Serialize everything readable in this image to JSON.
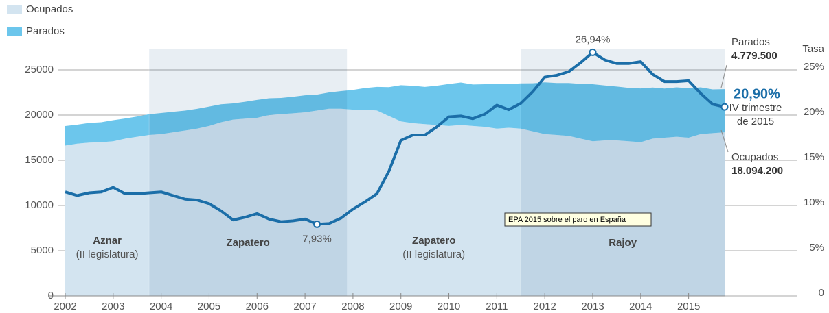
{
  "chart_data": {
    "type": "area",
    "x": [
      2002,
      2002.25,
      2002.5,
      2002.75,
      2003,
      2003.25,
      2003.5,
      2003.75,
      2004,
      2004.25,
      2004.5,
      2004.75,
      2005,
      2005.25,
      2005.5,
      2005.75,
      2006,
      2006.25,
      2006.5,
      2006.75,
      2007,
      2007.25,
      2007.5,
      2007.75,
      2008,
      2008.25,
      2008.5,
      2008.75,
      2009,
      2009.25,
      2009.5,
      2009.75,
      2010,
      2010.25,
      2010.5,
      2010.75,
      2011,
      2011.25,
      2011.5,
      2011.75,
      2012,
      2012.25,
      2012.5,
      2012.75,
      2013,
      2013.25,
      2013.5,
      2013.75,
      2014,
      2014.25,
      2014.5,
      2014.75,
      2015,
      2015.25,
      2015.5,
      2015.75
    ],
    "xlim": [
      2002,
      2015.75
    ],
    "xticks": [
      2002,
      2003,
      2004,
      2005,
      2006,
      2007,
      2008,
      2009,
      2010,
      2011,
      2012,
      2013,
      2014,
      2015
    ],
    "ylim": [
      0,
      25000
    ],
    "yticks": [
      0,
      5000,
      10000,
      15000,
      20000,
      25000
    ],
    "y2lim": [
      0,
      25
    ],
    "y2ticks": [
      0,
      {
        "value": 5,
        "label": "5%"
      },
      {
        "value": 10,
        "label": "10%"
      },
      {
        "value": 15,
        "label": "15%"
      },
      {
        "value": 20,
        "label": "20%"
      },
      {
        "value": 25,
        "label": "25%"
      }
    ],
    "y2label": "Tasa",
    "grid": true,
    "legend": "top-left",
    "series": [
      {
        "name": "Ocupados",
        "color": "#d3e4f0",
        "values": [
          16630,
          16840,
          16950,
          17000,
          17100,
          17400,
          17600,
          17800,
          17900,
          18100,
          18300,
          18500,
          18800,
          19200,
          19500,
          19600,
          19700,
          20000,
          20100,
          20200,
          20300,
          20500,
          20700,
          20700,
          20600,
          20600,
          20500,
          19900,
          19300,
          19100,
          19000,
          18900,
          18800,
          18900,
          18800,
          18700,
          18500,
          18600,
          18500,
          18200,
          17900,
          17800,
          17700,
          17400,
          17100,
          17200,
          17200,
          17100,
          17000,
          17400,
          17500,
          17600,
          17500,
          17900,
          18000,
          18094.2
        ],
        "value_labels": [
          null,
          null,
          null,
          null,
          null,
          null,
          null,
          null,
          null,
          null,
          null,
          null,
          null,
          null,
          null,
          null,
          null,
          null,
          null,
          null,
          null,
          null,
          null,
          null,
          null,
          null,
          null,
          null,
          null,
          null,
          null,
          null,
          null,
          null,
          null,
          null,
          null,
          null,
          null,
          null,
          null,
          null,
          null,
          null,
          null,
          null,
          null,
          null,
          null,
          null,
          null,
          null,
          null,
          null,
          null,
          "18.094.200"
        ]
      },
      {
        "name": "Parados",
        "color": "#6cc6ec",
        "values": [
          2162,
          2103,
          2181,
          2209,
          2332,
          2217,
          2242,
          2291,
          2326,
          2260,
          2193,
          2194,
          2135,
          1992,
          1788,
          1868,
          1972,
          1858,
          1795,
          1828,
          1886,
          1765,
          1800,
          1948,
          2188,
          2391,
          2612,
          3186,
          4009,
          4136,
          4114,
          4347,
          4642,
          4695,
          4583,
          4705,
          4947,
          4825,
          5006,
          5314,
          5715,
          5746,
          5837,
          6050,
          6305,
          6075,
          5949,
          5915,
          5942,
          5646,
          5436,
          5467,
          5465,
          5168,
          4843,
          4779.5
        ],
        "value_labels": [
          null,
          null,
          null,
          null,
          null,
          null,
          null,
          null,
          null,
          null,
          null,
          null,
          null,
          null,
          null,
          null,
          null,
          null,
          null,
          null,
          null,
          null,
          null,
          null,
          null,
          null,
          null,
          null,
          null,
          null,
          null,
          null,
          null,
          null,
          null,
          null,
          null,
          null,
          null,
          null,
          null,
          null,
          null,
          null,
          null,
          null,
          null,
          null,
          null,
          null,
          null,
          null,
          null,
          null,
          null,
          "4.779.500"
        ]
      },
      {
        "type": "line",
        "axis": "y2",
        "color": "#1b6ea8",
        "values": [
          11.5,
          11.1,
          11.4,
          11.5,
          12.0,
          11.3,
          11.3,
          11.4,
          11.5,
          11.1,
          10.7,
          10.6,
          10.2,
          9.4,
          8.4,
          8.7,
          9.1,
          8.5,
          8.2,
          8.3,
          8.5,
          7.93,
          8.0,
          8.6,
          9.6,
          10.4,
          11.3,
          13.8,
          17.2,
          17.8,
          17.8,
          18.7,
          19.8,
          19.9,
          19.6,
          20.1,
          21.1,
          20.6,
          21.3,
          22.6,
          24.2,
          24.4,
          24.8,
          25.8,
          26.94,
          26.1,
          25.7,
          25.7,
          25.9,
          24.5,
          23.7,
          23.7,
          23.8,
          22.4,
          21.2,
          20.9
        ],
        "value_labels": [
          null,
          null,
          null,
          null,
          null,
          null,
          null,
          null,
          null,
          null,
          null,
          null,
          null,
          null,
          null,
          null,
          null,
          null,
          null,
          null,
          null,
          "7,93%",
          null,
          null,
          null,
          null,
          null,
          null,
          null,
          null,
          null,
          null,
          null,
          null,
          null,
          null,
          null,
          null,
          null,
          null,
          null,
          null,
          null,
          null,
          "26,94%",
          null,
          null,
          null,
          null,
          null,
          null,
          null,
          null,
          null,
          null,
          "20,90%"
        ]
      }
    ],
    "annotations": [
      "IV trimestre",
      "de 2015"
    ],
    "periods": [
      {
        "name": "Aznar",
        "subtitle": "(II legislatura)",
        "start": 2002,
        "end": 2003.75
      },
      {
        "name": "Zapatero",
        "start": 2003.75,
        "end": 2007.875
      },
      {
        "name": "Zapatero",
        "subtitle": "(II legislatura)",
        "start": 2007.875,
        "end": 2011.5
      },
      {
        "name": "Rajoy",
        "start": 2011.5,
        "end": 2015.75
      }
    ],
    "tooltip": "EPA 2015 sobre el paro en España"
  }
}
